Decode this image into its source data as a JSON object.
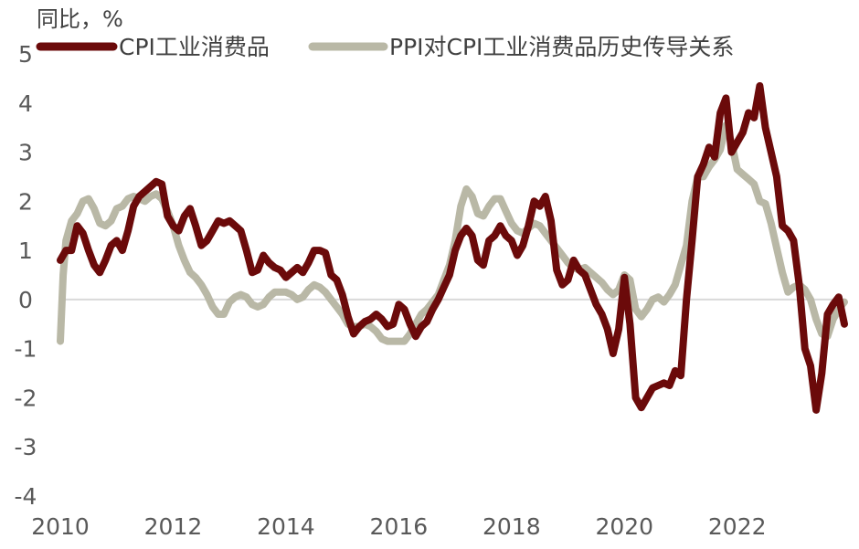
{
  "chart_data": {
    "type": "line",
    "title": "",
    "ylabel": "同比，%",
    "ylim": [
      -4,
      5
    ],
    "yticks": [
      "5",
      "4",
      "3",
      "2",
      "1",
      "0",
      "-1",
      "-2",
      "-3",
      "-4"
    ],
    "xlim": [
      2010,
      2023.9
    ],
    "xticks": [
      "2010",
      "2012",
      "2014",
      "2016",
      "2018",
      "2020",
      "2022"
    ],
    "legend_position": "top",
    "grid": false,
    "zero_line": true,
    "series": [
      {
        "name": "CPI工业消费品",
        "color": "#6b0a0a",
        "points": [
          [
            2010.0,
            0.8
          ],
          [
            2010.1,
            1.0
          ],
          [
            2010.2,
            1.0
          ],
          [
            2010.3,
            1.5
          ],
          [
            2010.4,
            1.35
          ],
          [
            2010.5,
            1.0
          ],
          [
            2010.6,
            0.7
          ],
          [
            2010.7,
            0.55
          ],
          [
            2010.8,
            0.8
          ],
          [
            2010.9,
            1.1
          ],
          [
            2011.0,
            1.2
          ],
          [
            2011.1,
            1.0
          ],
          [
            2011.2,
            1.4
          ],
          [
            2011.3,
            1.9
          ],
          [
            2011.4,
            2.1
          ],
          [
            2011.5,
            2.2
          ],
          [
            2011.6,
            2.3
          ],
          [
            2011.7,
            2.4
          ],
          [
            2011.8,
            2.35
          ],
          [
            2011.9,
            1.7
          ],
          [
            2012.0,
            1.5
          ],
          [
            2012.1,
            1.4
          ],
          [
            2012.2,
            1.7
          ],
          [
            2012.3,
            1.85
          ],
          [
            2012.4,
            1.5
          ],
          [
            2012.5,
            1.1
          ],
          [
            2012.6,
            1.2
          ],
          [
            2012.7,
            1.4
          ],
          [
            2012.8,
            1.6
          ],
          [
            2012.9,
            1.55
          ],
          [
            2013.0,
            1.6
          ],
          [
            2013.1,
            1.5
          ],
          [
            2013.2,
            1.4
          ],
          [
            2013.3,
            1.0
          ],
          [
            2013.4,
            0.55
          ],
          [
            2013.5,
            0.6
          ],
          [
            2013.6,
            0.9
          ],
          [
            2013.7,
            0.75
          ],
          [
            2013.8,
            0.65
          ],
          [
            2013.9,
            0.6
          ],
          [
            2014.0,
            0.45
          ],
          [
            2014.1,
            0.55
          ],
          [
            2014.2,
            0.65
          ],
          [
            2014.3,
            0.55
          ],
          [
            2014.4,
            0.75
          ],
          [
            2014.5,
            1.0
          ],
          [
            2014.6,
            1.0
          ],
          [
            2014.7,
            0.95
          ],
          [
            2014.8,
            0.5
          ],
          [
            2014.9,
            0.4
          ],
          [
            2015.0,
            0.1
          ],
          [
            2015.1,
            -0.35
          ],
          [
            2015.2,
            -0.7
          ],
          [
            2015.3,
            -0.55
          ],
          [
            2015.4,
            -0.45
          ],
          [
            2015.5,
            -0.4
          ],
          [
            2015.6,
            -0.3
          ],
          [
            2015.7,
            -0.4
          ],
          [
            2015.8,
            -0.55
          ],
          [
            2015.9,
            -0.5
          ],
          [
            2016.0,
            -0.1
          ],
          [
            2016.1,
            -0.2
          ],
          [
            2016.2,
            -0.5
          ],
          [
            2016.3,
            -0.75
          ],
          [
            2016.4,
            -0.55
          ],
          [
            2016.5,
            -0.45
          ],
          [
            2016.6,
            -0.2
          ],
          [
            2016.7,
            0.0
          ],
          [
            2016.8,
            0.25
          ],
          [
            2016.9,
            0.5
          ],
          [
            2017.0,
            1.0
          ],
          [
            2017.1,
            1.3
          ],
          [
            2017.2,
            1.45
          ],
          [
            2017.3,
            1.3
          ],
          [
            2017.4,
            0.8
          ],
          [
            2017.5,
            0.7
          ],
          [
            2017.6,
            1.2
          ],
          [
            2017.7,
            1.3
          ],
          [
            2017.8,
            1.5
          ],
          [
            2017.9,
            1.3
          ],
          [
            2018.0,
            1.2
          ],
          [
            2018.1,
            0.9
          ],
          [
            2018.2,
            1.1
          ],
          [
            2018.3,
            1.5
          ],
          [
            2018.4,
            2.0
          ],
          [
            2018.5,
            1.9
          ],
          [
            2018.6,
            2.1
          ],
          [
            2018.7,
            1.6
          ],
          [
            2018.8,
            0.6
          ],
          [
            2018.9,
            0.3
          ],
          [
            2019.0,
            0.4
          ],
          [
            2019.1,
            0.8
          ],
          [
            2019.2,
            0.6
          ],
          [
            2019.3,
            0.5
          ],
          [
            2019.4,
            0.2
          ],
          [
            2019.5,
            -0.1
          ],
          [
            2019.6,
            -0.3
          ],
          [
            2019.7,
            -0.6
          ],
          [
            2019.8,
            -1.1
          ],
          [
            2019.9,
            -0.6
          ],
          [
            2020.0,
            0.45
          ],
          [
            2020.1,
            -0.5
          ],
          [
            2020.2,
            -2.0
          ],
          [
            2020.3,
            -2.2
          ],
          [
            2020.4,
            -2.0
          ],
          [
            2020.5,
            -1.8
          ],
          [
            2020.6,
            -1.75
          ],
          [
            2020.7,
            -1.7
          ],
          [
            2020.8,
            -1.75
          ],
          [
            2020.9,
            -1.45
          ],
          [
            2021.0,
            -1.55
          ],
          [
            2021.1,
            0.0
          ],
          [
            2021.2,
            1.2
          ],
          [
            2021.3,
            2.5
          ],
          [
            2021.4,
            2.75
          ],
          [
            2021.5,
            3.1
          ],
          [
            2021.6,
            2.9
          ],
          [
            2021.7,
            3.8
          ],
          [
            2021.8,
            4.1
          ],
          [
            2021.9,
            3.0
          ],
          [
            2022.0,
            3.2
          ],
          [
            2022.1,
            3.4
          ],
          [
            2022.2,
            3.8
          ],
          [
            2022.3,
            3.7
          ],
          [
            2022.4,
            4.35
          ],
          [
            2022.5,
            3.5
          ],
          [
            2022.6,
            3.0
          ],
          [
            2022.7,
            2.5
          ],
          [
            2022.8,
            1.5
          ],
          [
            2022.9,
            1.4
          ],
          [
            2023.0,
            1.2
          ],
          [
            2023.1,
            0.3
          ],
          [
            2023.2,
            -1.0
          ],
          [
            2023.3,
            -1.35
          ],
          [
            2023.4,
            -2.25
          ],
          [
            2023.5,
            -1.5
          ],
          [
            2023.6,
            -0.3
          ],
          [
            2023.7,
            -0.1
          ],
          [
            2023.8,
            0.05
          ],
          [
            2023.9,
            -0.5
          ]
        ]
      },
      {
        "name": "PPI对CPI工业消费品历史传导关系",
        "color": "#b9b8a6",
        "points": [
          [
            2010.0,
            -0.85
          ],
          [
            2010.05,
            0.5
          ],
          [
            2010.1,
            1.2
          ],
          [
            2010.2,
            1.6
          ],
          [
            2010.3,
            1.75
          ],
          [
            2010.4,
            2.0
          ],
          [
            2010.5,
            2.05
          ],
          [
            2010.6,
            1.85
          ],
          [
            2010.7,
            1.55
          ],
          [
            2010.8,
            1.5
          ],
          [
            2010.9,
            1.6
          ],
          [
            2011.0,
            1.85
          ],
          [
            2011.1,
            1.9
          ],
          [
            2011.2,
            2.05
          ],
          [
            2011.3,
            2.1
          ],
          [
            2011.4,
            2.05
          ],
          [
            2011.5,
            2.0
          ],
          [
            2011.6,
            2.1
          ],
          [
            2011.7,
            2.15
          ],
          [
            2011.8,
            2.05
          ],
          [
            2011.9,
            1.8
          ],
          [
            2012.0,
            1.5
          ],
          [
            2012.1,
            1.1
          ],
          [
            2012.2,
            0.8
          ],
          [
            2012.3,
            0.55
          ],
          [
            2012.4,
            0.45
          ],
          [
            2012.5,
            0.3
          ],
          [
            2012.6,
            0.1
          ],
          [
            2012.7,
            -0.15
          ],
          [
            2012.8,
            -0.3
          ],
          [
            2012.9,
            -0.3
          ],
          [
            2013.0,
            -0.05
          ],
          [
            2013.1,
            0.05
          ],
          [
            2013.2,
            0.1
          ],
          [
            2013.3,
            0.05
          ],
          [
            2013.4,
            -0.1
          ],
          [
            2013.5,
            -0.15
          ],
          [
            2013.6,
            -0.1
          ],
          [
            2013.7,
            0.05
          ],
          [
            2013.8,
            0.15
          ],
          [
            2013.9,
            0.15
          ],
          [
            2014.0,
            0.15
          ],
          [
            2014.1,
            0.1
          ],
          [
            2014.2,
            0.0
          ],
          [
            2014.3,
            0.05
          ],
          [
            2014.4,
            0.2
          ],
          [
            2014.5,
            0.3
          ],
          [
            2014.6,
            0.25
          ],
          [
            2014.7,
            0.15
          ],
          [
            2014.8,
            0.0
          ],
          [
            2014.9,
            -0.15
          ],
          [
            2015.0,
            -0.3
          ],
          [
            2015.1,
            -0.5
          ],
          [
            2015.2,
            -0.55
          ],
          [
            2015.3,
            -0.55
          ],
          [
            2015.4,
            -0.5
          ],
          [
            2015.5,
            -0.55
          ],
          [
            2015.6,
            -0.65
          ],
          [
            2015.7,
            -0.8
          ],
          [
            2015.8,
            -0.85
          ],
          [
            2015.9,
            -0.85
          ],
          [
            2016.0,
            -0.85
          ],
          [
            2016.1,
            -0.85
          ],
          [
            2016.2,
            -0.7
          ],
          [
            2016.3,
            -0.5
          ],
          [
            2016.4,
            -0.3
          ],
          [
            2016.5,
            -0.2
          ],
          [
            2016.6,
            -0.05
          ],
          [
            2016.7,
            0.1
          ],
          [
            2016.8,
            0.4
          ],
          [
            2016.9,
            0.7
          ],
          [
            2017.0,
            1.2
          ],
          [
            2017.1,
            1.9
          ],
          [
            2017.2,
            2.25
          ],
          [
            2017.3,
            2.1
          ],
          [
            2017.4,
            1.75
          ],
          [
            2017.5,
            1.7
          ],
          [
            2017.6,
            1.9
          ],
          [
            2017.7,
            2.05
          ],
          [
            2017.8,
            2.05
          ],
          [
            2017.9,
            1.8
          ],
          [
            2018.0,
            1.55
          ],
          [
            2018.1,
            1.4
          ],
          [
            2018.2,
            1.35
          ],
          [
            2018.3,
            1.45
          ],
          [
            2018.4,
            1.55
          ],
          [
            2018.5,
            1.5
          ],
          [
            2018.6,
            1.35
          ],
          [
            2018.7,
            1.2
          ],
          [
            2018.8,
            1.05
          ],
          [
            2018.9,
            0.9
          ],
          [
            2019.0,
            0.75
          ],
          [
            2019.1,
            0.65
          ],
          [
            2019.2,
            0.6
          ],
          [
            2019.3,
            0.65
          ],
          [
            2019.4,
            0.55
          ],
          [
            2019.5,
            0.45
          ],
          [
            2019.6,
            0.35
          ],
          [
            2019.7,
            0.2
          ],
          [
            2019.8,
            0.1
          ],
          [
            2019.9,
            0.2
          ],
          [
            2020.0,
            0.5
          ],
          [
            2020.1,
            0.4
          ],
          [
            2020.2,
            -0.2
          ],
          [
            2020.3,
            -0.35
          ],
          [
            2020.4,
            -0.2
          ],
          [
            2020.5,
            0.0
          ],
          [
            2020.6,
            0.05
          ],
          [
            2020.7,
            -0.05
          ],
          [
            2020.8,
            0.1
          ],
          [
            2020.9,
            0.3
          ],
          [
            2021.0,
            0.7
          ],
          [
            2021.1,
            1.1
          ],
          [
            2021.2,
            2.0
          ],
          [
            2021.3,
            2.5
          ],
          [
            2021.4,
            2.5
          ],
          [
            2021.5,
            2.7
          ],
          [
            2021.6,
            2.85
          ],
          [
            2021.7,
            3.05
          ],
          [
            2021.8,
            3.55
          ],
          [
            2021.9,
            3.2
          ],
          [
            2022.0,
            2.65
          ],
          [
            2022.1,
            2.55
          ],
          [
            2022.2,
            2.45
          ],
          [
            2022.3,
            2.35
          ],
          [
            2022.4,
            2.0
          ],
          [
            2022.5,
            1.95
          ],
          [
            2022.6,
            1.55
          ],
          [
            2022.7,
            1.05
          ],
          [
            2022.8,
            0.55
          ],
          [
            2022.9,
            0.15
          ],
          [
            2023.0,
            0.25
          ],
          [
            2023.1,
            0.3
          ],
          [
            2023.2,
            0.2
          ],
          [
            2023.3,
            0.0
          ],
          [
            2023.4,
            -0.4
          ],
          [
            2023.5,
            -0.7
          ],
          [
            2023.6,
            -0.75
          ],
          [
            2023.7,
            -0.4
          ],
          [
            2023.8,
            -0.2
          ],
          [
            2023.9,
            -0.05
          ]
        ]
      }
    ]
  }
}
